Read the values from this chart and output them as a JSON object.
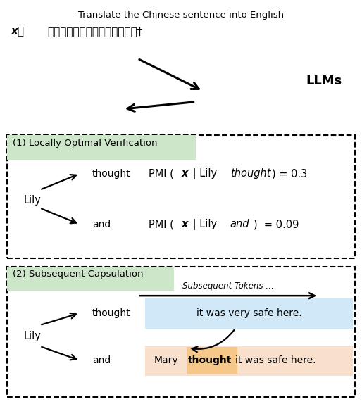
{
  "title_top": "Translate the Chinese sentence into English",
  "chinese_x_label": "x",
  "chinese_colon": "：",
  "chinese_text": "菄莉和玛丽认为这里非常安全。†",
  "llms_label": "LLMs",
  "box1_title": "(1) Locally Optimal Verification",
  "box1_title_bg": "#cde5c8",
  "lily1": "Lily",
  "thought1": "thought",
  "and1": "and",
  "box2_title": "(2) Subsequent Capsulation",
  "box2_title_bg": "#cde5c8",
  "subsequent_label": "Subsequent Tokens …",
  "lily2": "Lily",
  "thought2": "thought",
  "and2": "and",
  "thought_box_text": "it was very safe here.",
  "thought_box_color": "#d0e8f8",
  "and_box_mary": "Mary",
  "and_box_thought": "thought",
  "and_box_rest": "it was safe here.",
  "and_box_color": "#f8e0cc",
  "and_highlight_color": "#f5c88a",
  "pmi1_full": "PMI ( x | Lily thought ) = 0.3",
  "pmi2_full": "PMI ( x | Lily and ) = 0.09",
  "fig_width": 5.14,
  "fig_height": 5.74,
  "dpi": 100
}
